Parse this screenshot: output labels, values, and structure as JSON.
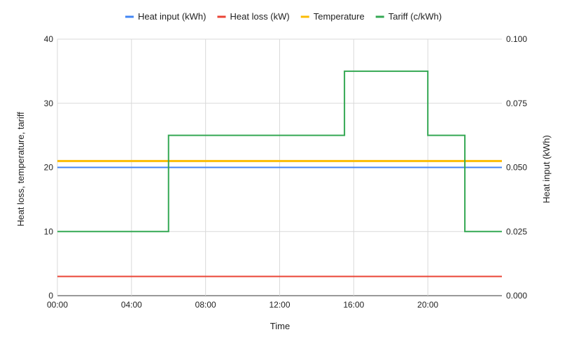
{
  "chart_data": {
    "type": "line",
    "title": "",
    "xlabel": "Time",
    "ylabel": "Heat loss, temperature, tariff",
    "y2label": "Heat input (kWh)",
    "legend_position": "top",
    "grid": true,
    "x_ticks": [
      "00:00",
      "04:00",
      "08:00",
      "12:00",
      "16:00",
      "20:00"
    ],
    "x_tick_hours": [
      0,
      4,
      8,
      12,
      16,
      20
    ],
    "xlim_hours": [
      0,
      24
    ],
    "ylim": [
      0,
      40
    ],
    "y_ticks": [
      0,
      10,
      20,
      30,
      40
    ],
    "y_tick_labels": [
      "0",
      "10",
      "20",
      "30",
      "40"
    ],
    "y2lim": [
      0,
      0.1
    ],
    "y2_ticks": [
      0,
      0.025,
      0.05,
      0.075,
      0.1
    ],
    "y2_tick_labels": [
      "0.000",
      "0.025",
      "0.050",
      "0.075",
      "0.100"
    ],
    "series": [
      {
        "name": "Heat input (kWh)",
        "color": "#4285F4",
        "axis": "right",
        "step": false,
        "x": [
          0,
          24
        ],
        "values": [
          0.05,
          0.05
        ]
      },
      {
        "name": "Heat loss (kW)",
        "color": "#EA4335",
        "axis": "left",
        "step": false,
        "x": [
          0,
          24
        ],
        "values": [
          3,
          3
        ]
      },
      {
        "name": "Temperature",
        "color": "#FBBC04",
        "axis": "left",
        "step": false,
        "x": [
          0,
          24
        ],
        "values": [
          21,
          21
        ]
      },
      {
        "name": "Tariff (c/kWh)",
        "color": "#34A853",
        "axis": "left",
        "step": true,
        "x": [
          0,
          6,
          15.5,
          20,
          22,
          24
        ],
        "values": [
          10,
          25,
          35,
          25,
          10,
          10
        ]
      }
    ]
  }
}
